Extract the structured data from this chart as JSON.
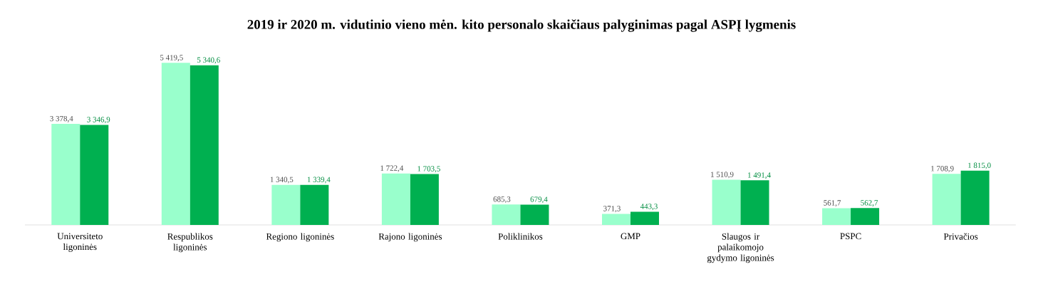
{
  "chart_data": {
    "type": "bar",
    "title": "2019 ir 2020 m. vidutinio vieno mėn. kito personalo skaičiaus palyginimas pagal ASPĮ lygmenis",
    "categories": [
      "Universiteto ligoninės",
      "Respublikos ligoninės",
      "Regiono ligoninės",
      "Rajono ligoninės",
      "Poliklinikos",
      "GMP",
      "Slaugos ir palaikomojo gydymo ligoninės",
      "PSPC",
      "Privačios"
    ],
    "series": [
      {
        "color": "#99ffcc",
        "values": [
          3378.4,
          5419.5,
          1340.5,
          1722.4,
          685.3,
          371.3,
          1510.9,
          561.7,
          1708.9
        ],
        "value_labels": [
          "3 378,4",
          "5 419,5",
          "1 340,5",
          "1 722,4",
          "685,3",
          "371,3",
          "1 510,9",
          "561,7",
          "1 708,9"
        ]
      },
      {
        "color": "#00b050",
        "values": [
          3346.9,
          5340.6,
          1339.4,
          1703.5,
          679.4,
          443.3,
          1491.4,
          562.7,
          1815.0
        ],
        "value_labels": [
          "3 346,9",
          "5 340,6",
          "1 339,4",
          "1 703,5",
          "679,4",
          "443,3",
          "1 491,4",
          "562,7",
          "1 815,0"
        ]
      }
    ]
  }
}
